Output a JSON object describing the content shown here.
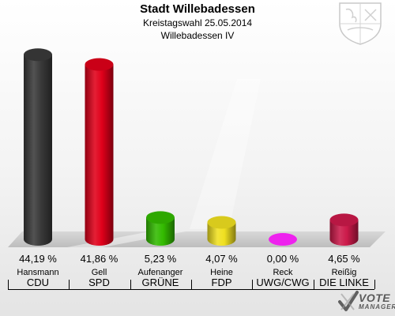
{
  "header": {
    "title": "Stadt Willebadessen",
    "subtitle": "Kreistagswahl 25.05.2014",
    "district": "Willebadessen IV"
  },
  "logo": {
    "text_line1": "VOTE",
    "text_line2": "MANAGER"
  },
  "chart_data": {
    "type": "bar",
    "title": "Stadt Willebadessen",
    "subtitle": "Kreistagswahl 25.05.2014 — Willebadessen IV",
    "categories": [
      "Hansmann",
      "Gell",
      "Aufenanger",
      "Heine",
      "Reck",
      "Reißig"
    ],
    "parties": [
      "CDU",
      "SPD",
      "GRÜNE",
      "FDP",
      "UWG/CWG",
      "DIE LINKE"
    ],
    "values": [
      44.19,
      41.86,
      5.23,
      4.07,
      0.0,
      4.65
    ],
    "labels": [
      "44,19 %",
      "41,86 %",
      "5,23 %",
      "4,07 %",
      "0,00 %",
      "4,65 %"
    ],
    "colors": [
      "#3a3a3a",
      "#e0001a",
      "#33bb00",
      "#f0e020",
      "#ee22ee",
      "#cc1a4a"
    ],
    "ylim": [
      0,
      45
    ],
    "grid": false,
    "legend": "none"
  }
}
